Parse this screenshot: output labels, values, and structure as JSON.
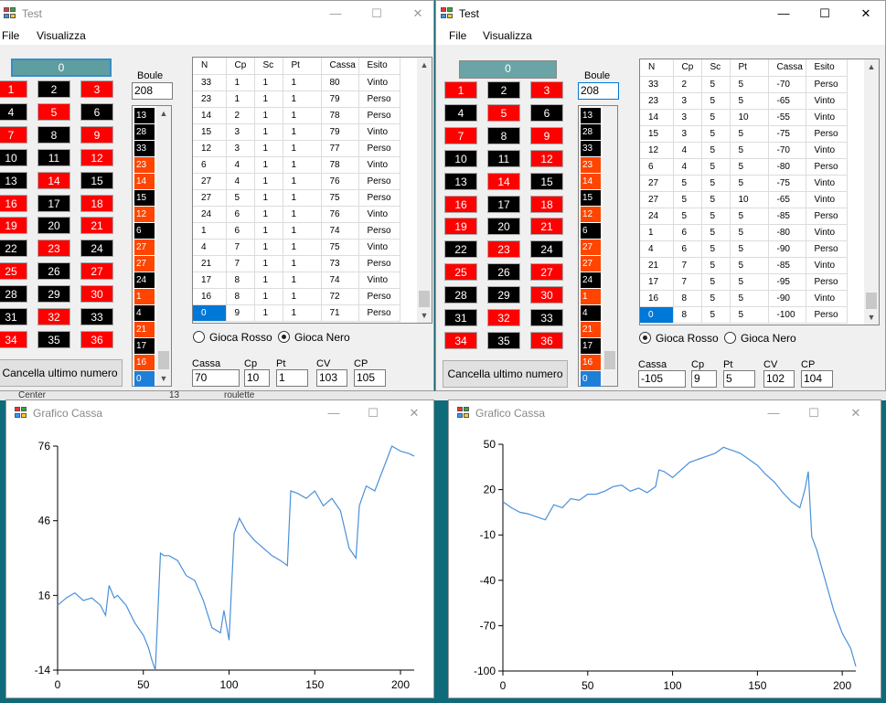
{
  "background_window": {
    "labels": [
      "Center",
      "13",
      "roulette"
    ]
  },
  "roulette_numbers": [
    {
      "n": "1",
      "c": "r"
    },
    {
      "n": "2",
      "c": "b"
    },
    {
      "n": "3",
      "c": "r"
    },
    {
      "n": "4",
      "c": "b"
    },
    {
      "n": "5",
      "c": "r"
    },
    {
      "n": "6",
      "c": "b"
    },
    {
      "n": "7",
      "c": "r"
    },
    {
      "n": "8",
      "c": "b"
    },
    {
      "n": "9",
      "c": "r"
    },
    {
      "n": "10",
      "c": "b"
    },
    {
      "n": "11",
      "c": "b"
    },
    {
      "n": "12",
      "c": "r"
    },
    {
      "n": "13",
      "c": "b"
    },
    {
      "n": "14",
      "c": "r"
    },
    {
      "n": "15",
      "c": "b"
    },
    {
      "n": "16",
      "c": "r"
    },
    {
      "n": "17",
      "c": "b"
    },
    {
      "n": "18",
      "c": "r"
    },
    {
      "n": "19",
      "c": "r"
    },
    {
      "n": "20",
      "c": "b"
    },
    {
      "n": "21",
      "c": "r"
    },
    {
      "n": "22",
      "c": "b"
    },
    {
      "n": "23",
      "c": "r"
    },
    {
      "n": "24",
      "c": "b"
    },
    {
      "n": "25",
      "c": "r"
    },
    {
      "n": "26",
      "c": "b"
    },
    {
      "n": "27",
      "c": "r"
    },
    {
      "n": "28",
      "c": "b"
    },
    {
      "n": "29",
      "c": "b"
    },
    {
      "n": "30",
      "c": "r"
    },
    {
      "n": "31",
      "c": "b"
    },
    {
      "n": "32",
      "c": "r"
    },
    {
      "n": "33",
      "c": "b"
    },
    {
      "n": "34",
      "c": "r"
    },
    {
      "n": "35",
      "c": "b"
    },
    {
      "n": "36",
      "c": "r"
    }
  ],
  "history": [
    {
      "n": "13",
      "c": "b"
    },
    {
      "n": "28",
      "c": "b"
    },
    {
      "n": "33",
      "c": "b"
    },
    {
      "n": "23",
      "c": "r"
    },
    {
      "n": "14",
      "c": "r"
    },
    {
      "n": "15",
      "c": "b"
    },
    {
      "n": "12",
      "c": "r"
    },
    {
      "n": "6",
      "c": "b"
    },
    {
      "n": "27",
      "c": "r"
    },
    {
      "n": "27",
      "c": "r"
    },
    {
      "n": "24",
      "c": "b"
    },
    {
      "n": "1",
      "c": "r"
    },
    {
      "n": "4",
      "c": "b"
    },
    {
      "n": "21",
      "c": "r"
    },
    {
      "n": "17",
      "c": "b"
    },
    {
      "n": "16",
      "c": "r"
    },
    {
      "n": "0",
      "c": "z"
    }
  ],
  "columns": [
    "N",
    "Cp",
    "Sc",
    "Pt",
    "Cassa",
    "Esito"
  ],
  "win1": {
    "title": "Test",
    "menu": [
      "File",
      "Visualizza"
    ],
    "zero": "0",
    "boule_label": "Boule",
    "boule_value": "208",
    "clear_button": "Cancella ultimo numero",
    "rows": [
      [
        "33",
        "1",
        "1",
        "1",
        "80",
        "Vinto"
      ],
      [
        "23",
        "1",
        "1",
        "1",
        "79",
        "Perso"
      ],
      [
        "14",
        "2",
        "1",
        "1",
        "78",
        "Perso"
      ],
      [
        "15",
        "3",
        "1",
        "1",
        "79",
        "Vinto"
      ],
      [
        "12",
        "3",
        "1",
        "1",
        "77",
        "Perso"
      ],
      [
        "6",
        "4",
        "1",
        "1",
        "78",
        "Vinto"
      ],
      [
        "27",
        "4",
        "1",
        "1",
        "76",
        "Perso"
      ],
      [
        "27",
        "5",
        "1",
        "1",
        "75",
        "Perso"
      ],
      [
        "24",
        "6",
        "1",
        "1",
        "76",
        "Vinto"
      ],
      [
        "1",
        "6",
        "1",
        "1",
        "74",
        "Perso"
      ],
      [
        "4",
        "7",
        "1",
        "1",
        "75",
        "Vinto"
      ],
      [
        "21",
        "7",
        "1",
        "1",
        "73",
        "Perso"
      ],
      [
        "17",
        "8",
        "1",
        "1",
        "74",
        "Vinto"
      ],
      [
        "16",
        "8",
        "1",
        "1",
        "72",
        "Perso"
      ],
      [
        "0",
        "9",
        "1",
        "1",
        "71",
        "Perso"
      ]
    ],
    "radio_red": "Gioca Rosso",
    "radio_black": "Gioca Nero",
    "fields": [
      {
        "label": "Cassa",
        "value": "70"
      },
      {
        "label": "Cp",
        "value": "10"
      },
      {
        "label": "Pt",
        "value": "1"
      },
      {
        "label": "CV",
        "value": "103"
      },
      {
        "label": "CP",
        "value": "105"
      }
    ]
  },
  "win2": {
    "title": "Test",
    "menu": [
      "File",
      "Visualizza"
    ],
    "zero": "0",
    "boule_label": "Boule",
    "boule_value": "208",
    "clear_button": "Cancella ultimo numero",
    "rows": [
      [
        "33",
        "2",
        "5",
        "5",
        "-70",
        "Perso"
      ],
      [
        "23",
        "3",
        "5",
        "5",
        "-65",
        "Vinto"
      ],
      [
        "14",
        "3",
        "5",
        "10",
        "-55",
        "Vinto"
      ],
      [
        "15",
        "3",
        "5",
        "5",
        "-75",
        "Perso"
      ],
      [
        "12",
        "4",
        "5",
        "5",
        "-70",
        "Vinto"
      ],
      [
        "6",
        "4",
        "5",
        "5",
        "-80",
        "Perso"
      ],
      [
        "27",
        "5",
        "5",
        "5",
        "-75",
        "Vinto"
      ],
      [
        "27",
        "5",
        "5",
        "10",
        "-65",
        "Vinto"
      ],
      [
        "24",
        "5",
        "5",
        "5",
        "-85",
        "Perso"
      ],
      [
        "1",
        "6",
        "5",
        "5",
        "-80",
        "Vinto"
      ],
      [
        "4",
        "6",
        "5",
        "5",
        "-90",
        "Perso"
      ],
      [
        "21",
        "7",
        "5",
        "5",
        "-85",
        "Vinto"
      ],
      [
        "17",
        "7",
        "5",
        "5",
        "-95",
        "Perso"
      ],
      [
        "16",
        "8",
        "5",
        "5",
        "-90",
        "Vinto"
      ],
      [
        "0",
        "8",
        "5",
        "5",
        "-100",
        "Perso"
      ]
    ],
    "radio_red": "Gioca Rosso",
    "radio_black": "Gioca Nero",
    "fields": [
      {
        "label": "Cassa",
        "value": "-105"
      },
      {
        "label": "Cp",
        "value": "9"
      },
      {
        "label": "Pt",
        "value": "5"
      },
      {
        "label": "CV",
        "value": "102"
      },
      {
        "label": "CP",
        "value": "104"
      }
    ]
  },
  "chart_window_title": "Grafico Cassa",
  "colors": {
    "red": "#ff0000",
    "black": "#000000",
    "orange": "#ff4500",
    "line": "#4a90d9",
    "zero": "#5f9ea0",
    "select": "#0078d7"
  },
  "chart_data": [
    {
      "type": "line",
      "xlim": [
        0,
        208
      ],
      "ylim": [
        -14,
        76
      ],
      "xticks": [
        "0",
        "50",
        "100",
        "150",
        "200"
      ],
      "yticks": [
        "76",
        "46",
        "16",
        "-14"
      ],
      "x": [
        0,
        5,
        10,
        15,
        20,
        25,
        28,
        30,
        33,
        35,
        40,
        45,
        50,
        53,
        55,
        57,
        60,
        62,
        65,
        70,
        75,
        80,
        85,
        90,
        95,
        97,
        100,
        103,
        106,
        110,
        115,
        120,
        125,
        130,
        134,
        136,
        140,
        145,
        150,
        155,
        160,
        165,
        170,
        174,
        176,
        180,
        185,
        190,
        195,
        200,
        205,
        208
      ],
      "y": [
        12,
        15,
        17,
        14,
        15,
        12,
        8,
        20,
        15,
        16,
        12,
        5,
        0,
        -5,
        -10,
        -14,
        33,
        32,
        32,
        30,
        24,
        22,
        14,
        3,
        1,
        10,
        -2,
        41,
        47,
        42,
        38,
        35,
        32,
        30,
        28,
        58,
        57,
        55,
        58,
        52,
        55,
        50,
        35,
        31,
        52,
        60,
        58,
        67,
        76,
        74,
        73,
        72
      ]
    },
    {
      "type": "line",
      "xlim": [
        0,
        208
      ],
      "ylim": [
        -100,
        50
      ],
      "xticks": [
        "0",
        "50",
        "100",
        "150",
        "200"
      ],
      "yticks": [
        "50",
        "20",
        "-10",
        "-40",
        "-70",
        "-100"
      ],
      "x": [
        0,
        5,
        10,
        15,
        20,
        25,
        30,
        35,
        40,
        45,
        50,
        55,
        60,
        65,
        70,
        75,
        80,
        85,
        90,
        92,
        95,
        100,
        105,
        110,
        115,
        120,
        125,
        130,
        135,
        140,
        145,
        150,
        155,
        160,
        165,
        170,
        175,
        178,
        180,
        182,
        185,
        190,
        195,
        200,
        205,
        208
      ],
      "y": [
        12,
        8,
        5,
        4,
        2,
        0,
        10,
        8,
        14,
        13,
        17,
        17,
        19,
        22,
        23,
        19,
        21,
        18,
        22,
        33,
        32,
        28,
        33,
        38,
        40,
        42,
        44,
        48,
        46,
        44,
        40,
        36,
        30,
        25,
        18,
        12,
        8,
        20,
        32,
        -11,
        -20,
        -40,
        -60,
        -75,
        -85,
        -97
      ]
    }
  ]
}
